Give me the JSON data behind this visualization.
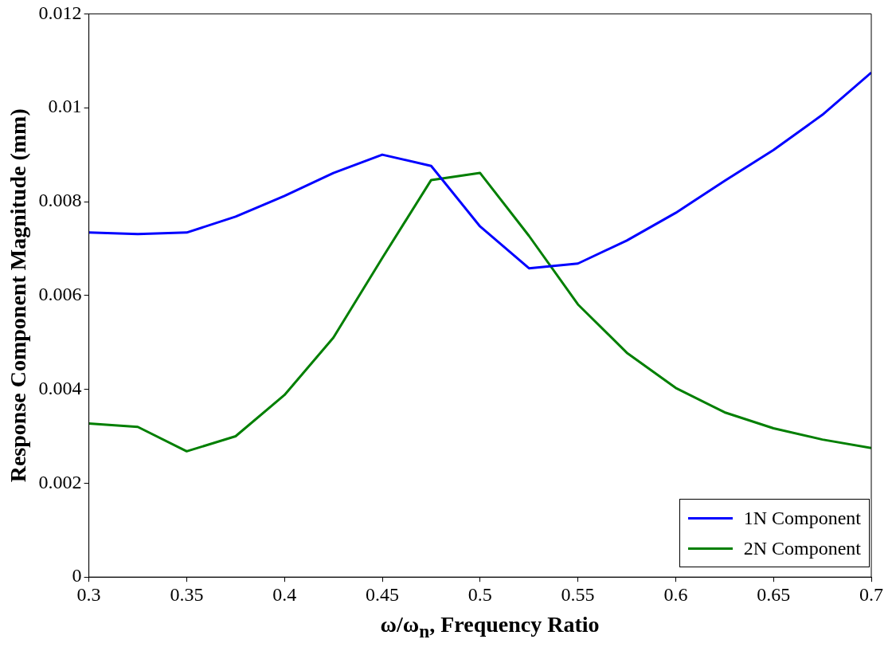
{
  "chart_data": {
    "type": "line",
    "xlabel": "ω/ω$_{n}$, Frequency Ratio",
    "ylabel": "Response Component Magnitude (mm)",
    "x": [
      0.3,
      0.325,
      0.35,
      0.375,
      0.4,
      0.425,
      0.45,
      0.475,
      0.5,
      0.525,
      0.55,
      0.575,
      0.6,
      0.625,
      0.65,
      0.675,
      0.7
    ],
    "series": [
      {
        "name": "1N Component",
        "color": "#0000ff",
        "values": [
          0.00734,
          0.00731,
          0.00734,
          0.00768,
          0.00812,
          0.00861,
          0.009,
          0.00876,
          0.00747,
          0.00658,
          0.00668,
          0.00717,
          0.00776,
          0.00844,
          0.0091,
          0.00985,
          0.01075
        ]
      },
      {
        "name": "2N Component",
        "color": "#007f00",
        "values": [
          0.00327,
          0.0032,
          0.00268,
          0.003,
          0.00388,
          0.0051,
          0.0068,
          0.00846,
          0.00861,
          0.00727,
          0.00581,
          0.00478,
          0.00403,
          0.00351,
          0.00317,
          0.00293,
          0.00275
        ]
      }
    ],
    "xlim": [
      0.3,
      0.7
    ],
    "xticks": [
      0.3,
      0.35,
      0.4,
      0.45,
      0.5,
      0.55,
      0.6,
      0.65,
      0.7
    ],
    "ylim": [
      0,
      0.012
    ],
    "yticks": [
      0,
      0.002,
      0.004,
      0.006,
      0.008,
      0.01,
      0.012
    ],
    "legend": "bottom right",
    "marker": "none",
    "line_style": "solid",
    "grid": false
  }
}
